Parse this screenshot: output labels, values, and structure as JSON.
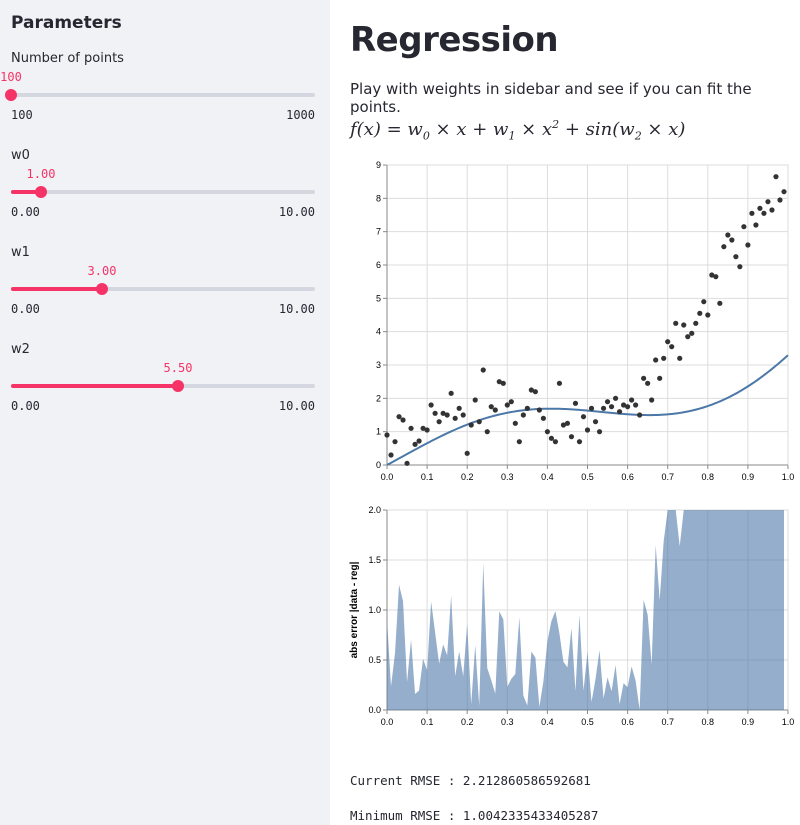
{
  "sidebar": {
    "title": "Parameters",
    "sliders": [
      {
        "label": "Number of points",
        "value_text": "100",
        "value": 100,
        "min": 100,
        "max": 1000,
        "min_text": "100",
        "max_text": "1000"
      },
      {
        "label": "w0",
        "value_text": "1.00",
        "value": 1.0,
        "min": 0,
        "max": 10,
        "min_text": "0.00",
        "max_text": "10.00"
      },
      {
        "label": "w1",
        "value_text": "3.00",
        "value": 3.0,
        "min": 0,
        "max": 10,
        "min_text": "0.00",
        "max_text": "10.00"
      },
      {
        "label": "w2",
        "value_text": "5.50",
        "value": 5.5,
        "min": 0,
        "max": 10,
        "min_text": "0.00",
        "max_text": "10.00"
      }
    ]
  },
  "main": {
    "title": "Regression",
    "description": "Play with weights in sidebar and see if you can fit the points.",
    "formula": {
      "lhs": "f(x) = ",
      "w0": "w",
      "w0_sub": "0",
      "t1": " × x + ",
      "w1": "w",
      "w1_sub": "1",
      "t2": " × x",
      "x_sup": "2",
      "t3": " + sin(",
      "w2": "w",
      "w2_sub": "2",
      "t4": " × x)"
    },
    "rmse_current": "Current RMSE : 2.212860586592681",
    "rmse_minimum": "Minimum RMSE : 1.0042335433405287"
  },
  "chart_data": [
    {
      "type": "scatter",
      "title": "",
      "xlabel": "",
      "ylabel": "",
      "xlim": [
        0,
        1
      ],
      "ylim": [
        0,
        9
      ],
      "x_ticks": [
        0.0,
        0.1,
        0.2,
        0.3,
        0.4,
        0.5,
        0.6,
        0.7,
        0.8,
        0.9,
        1.0
      ],
      "x_tick_labels": [
        "0.0",
        "0.1",
        "0.2",
        "0.3",
        "0.4",
        "0.5",
        "0.6",
        "0.7",
        "0.8",
        "0.9",
        "1.0"
      ],
      "y_ticks": [
        0,
        1,
        2,
        3,
        4,
        5,
        6,
        7,
        8,
        9
      ],
      "y_tick_labels": [
        "0",
        "1",
        "2",
        "3",
        "4",
        "5",
        "6",
        "7",
        "8",
        "9"
      ],
      "grid": true,
      "points": [
        [
          0.0,
          0.9
        ],
        [
          0.01,
          0.3
        ],
        [
          0.02,
          0.7
        ],
        [
          0.03,
          1.45
        ],
        [
          0.04,
          1.35
        ],
        [
          0.05,
          0.05
        ],
        [
          0.06,
          1.1
        ],
        [
          0.07,
          0.62
        ],
        [
          0.08,
          0.72
        ],
        [
          0.09,
          1.1
        ],
        [
          0.1,
          1.05
        ],
        [
          0.11,
          1.8
        ],
        [
          0.12,
          1.55
        ],
        [
          0.13,
          1.3
        ],
        [
          0.14,
          1.55
        ],
        [
          0.15,
          1.5
        ],
        [
          0.16,
          2.15
        ],
        [
          0.17,
          1.4
        ],
        [
          0.18,
          1.7
        ],
        [
          0.19,
          1.5
        ],
        [
          0.2,
          0.35
        ],
        [
          0.21,
          1.2
        ],
        [
          0.22,
          1.95
        ],
        [
          0.23,
          1.3
        ],
        [
          0.24,
          2.85
        ],
        [
          0.25,
          1.0
        ],
        [
          0.26,
          1.75
        ],
        [
          0.27,
          1.65
        ],
        [
          0.28,
          2.5
        ],
        [
          0.29,
          2.45
        ],
        [
          0.3,
          1.8
        ],
        [
          0.31,
          1.9
        ],
        [
          0.32,
          1.25
        ],
        [
          0.33,
          0.7
        ],
        [
          0.34,
          1.5
        ],
        [
          0.35,
          1.7
        ],
        [
          0.36,
          2.25
        ],
        [
          0.37,
          2.2
        ],
        [
          0.38,
          1.65
        ],
        [
          0.39,
          1.4
        ],
        [
          0.4,
          1.0
        ],
        [
          0.41,
          0.8
        ],
        [
          0.42,
          0.7
        ],
        [
          0.43,
          2.45
        ],
        [
          0.44,
          1.2
        ],
        [
          0.45,
          1.25
        ],
        [
          0.46,
          0.85
        ],
        [
          0.47,
          1.85
        ],
        [
          0.48,
          0.7
        ],
        [
          0.49,
          1.45
        ],
        [
          0.5,
          1.05
        ],
        [
          0.51,
          1.7
        ],
        [
          0.52,
          1.3
        ],
        [
          0.53,
          1.0
        ],
        [
          0.54,
          1.7
        ],
        [
          0.55,
          1.9
        ],
        [
          0.56,
          1.75
        ],
        [
          0.57,
          2.0
        ],
        [
          0.58,
          1.6
        ],
        [
          0.59,
          1.8
        ],
        [
          0.6,
          1.75
        ],
        [
          0.61,
          1.95
        ],
        [
          0.62,
          1.8
        ],
        [
          0.63,
          1.5
        ],
        [
          0.64,
          2.6
        ],
        [
          0.65,
          2.45
        ],
        [
          0.66,
          1.95
        ],
        [
          0.67,
          3.15
        ],
        [
          0.68,
          2.6
        ],
        [
          0.69,
          3.2
        ],
        [
          0.7,
          3.7
        ],
        [
          0.71,
          3.55
        ],
        [
          0.72,
          4.25
        ],
        [
          0.73,
          3.2
        ],
        [
          0.74,
          4.2
        ],
        [
          0.75,
          3.85
        ],
        [
          0.76,
          3.95
        ],
        [
          0.77,
          4.25
        ],
        [
          0.78,
          4.55
        ],
        [
          0.79,
          4.9
        ],
        [
          0.8,
          4.5
        ],
        [
          0.81,
          5.7
        ],
        [
          0.82,
          5.65
        ],
        [
          0.83,
          4.85
        ],
        [
          0.84,
          6.55
        ],
        [
          0.85,
          6.9
        ],
        [
          0.86,
          6.75
        ],
        [
          0.87,
          6.25
        ],
        [
          0.88,
          5.95
        ],
        [
          0.89,
          7.15
        ],
        [
          0.9,
          6.6
        ],
        [
          0.91,
          7.55
        ],
        [
          0.92,
          7.2
        ],
        [
          0.93,
          7.7
        ],
        [
          0.94,
          7.55
        ],
        [
          0.95,
          7.9
        ],
        [
          0.96,
          7.65
        ],
        [
          0.97,
          8.65
        ],
        [
          0.98,
          7.95
        ],
        [
          0.99,
          8.2
        ]
      ],
      "line": {
        "name": "f(x) = 1.00·x + 3.00·x² + sin(5.50·x)",
        "w0": 1.0,
        "w1": 3.0,
        "w2": 5.5
      }
    },
    {
      "type": "area",
      "title": "",
      "xlabel": "",
      "ylabel": "abs error |data - reg|",
      "xlim": [
        0,
        1
      ],
      "ylim": [
        0,
        2
      ],
      "x_ticks": [
        0.0,
        0.1,
        0.2,
        0.3,
        0.4,
        0.5,
        0.6,
        0.7,
        0.8,
        0.9,
        1.0
      ],
      "x_tick_labels": [
        "0.0",
        "0.1",
        "0.2",
        "0.3",
        "0.4",
        "0.5",
        "0.6",
        "0.7",
        "0.8",
        "0.9",
        "1.0"
      ],
      "y_ticks": [
        0,
        0.5,
        1.0,
        1.5,
        2.0
      ],
      "y_tick_labels": [
        "0.0",
        "0.5",
        "1.0",
        "1.5",
        "2.0"
      ],
      "grid": true,
      "series_note": "abs(points.y - line(x)), clipped at 2.0"
    }
  ]
}
